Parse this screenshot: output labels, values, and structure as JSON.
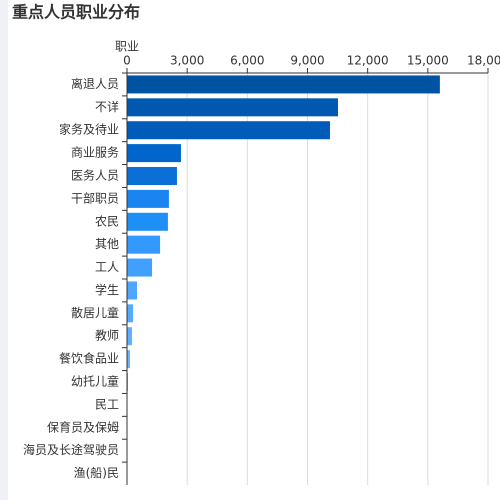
{
  "chart_data": {
    "type": "bar",
    "orientation": "horizontal",
    "title": "重点人员职业分布",
    "axis_name": "职业",
    "categories": [
      "离退人员",
      "不详",
      "家务及待业",
      "商业服务",
      "医务人员",
      "干部职员",
      "农民",
      "其他",
      "工人",
      "学生",
      "散居儿童",
      "教师",
      "餐饮食品业",
      "幼托儿童",
      "民工",
      "保育员及保姆",
      "海员及长途驾驶员",
      "渔(船)民"
    ],
    "values": [
      15600,
      10520,
      10120,
      2690,
      2490,
      2090,
      2040,
      1650,
      1250,
      500,
      300,
      250,
      150,
      50,
      20,
      10,
      5,
      5
    ],
    "colors": [
      "#0052a3",
      "#0058b0",
      "#005cb8",
      "#0066cc",
      "#0a6fd6",
      "#1a85f0",
      "#1e8ff5",
      "#3399ff",
      "#40a0ff",
      "#4da6ff",
      "#55aaff",
      "#5cb0ff",
      "#66b5ff",
      "#70baff",
      "#7abfff",
      "#85c4ff",
      "#8fc9ff",
      "#99ceff"
    ],
    "xlim": [
      0,
      18000
    ],
    "xticks": [
      0,
      {
        "value": 3000,
        "label": "3,000"
      },
      {
        "value": 6000,
        "label": "6,000"
      },
      {
        "value": 9000,
        "label": "9,000"
      },
      {
        "value": 12000,
        "label": "12,000"
      },
      {
        "value": 15000,
        "label": "15,000"
      },
      {
        "value": 18000,
        "label": "18,000"
      }
    ],
    "grid": true
  }
}
